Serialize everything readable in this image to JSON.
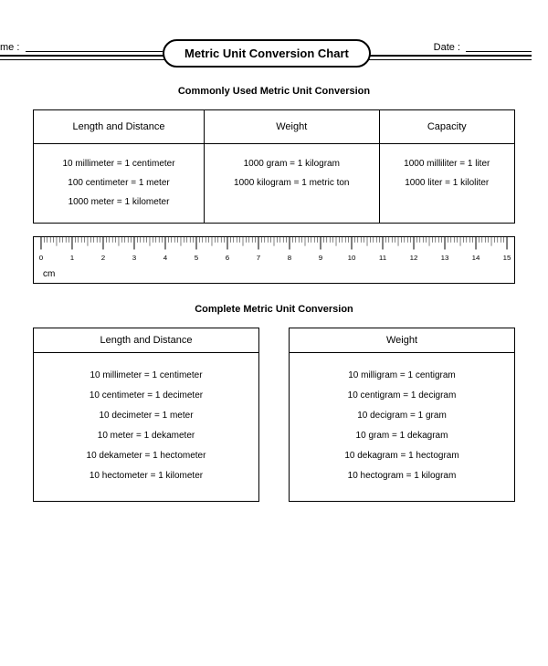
{
  "header": {
    "name_label": "me :",
    "date_label": "Date :",
    "title": "Metric Unit Conversion Chart"
  },
  "section1": {
    "title": "Commonly Used Metric Unit Conversion",
    "columns": [
      "Length and Distance",
      "Weight",
      "Capacity"
    ],
    "rows": [
      [
        "10 millimeter = 1 centimeter",
        "1000 gram = 1 kilogram",
        "1000 milliliter = 1 liter"
      ],
      [
        "100 centimeter = 1 meter",
        "1000 kilogram = 1 metric ton",
        "1000 liter = 1 kiloliter"
      ],
      [
        "1000 meter = 1 kilometer",
        "",
        ""
      ]
    ]
  },
  "ruler": {
    "unit_label": "cm",
    "ticks": [
      0,
      1,
      2,
      3,
      4,
      5,
      6,
      7,
      8,
      9,
      10,
      11,
      12,
      13,
      14,
      15
    ],
    "minor_per_major": 10,
    "tick_color": "#000000",
    "font_size": 8
  },
  "section2": {
    "title": "Complete Metric Unit Conversion",
    "left": {
      "header": "Length and Distance",
      "lines": [
        "10 millimeter = 1 centimeter",
        "10 centimeter = 1 decimeter",
        "10 decimeter = 1 meter",
        "10 meter  = 1 dekameter",
        "10 dekameter = 1 hectometer",
        "10 hectometer = 1 kilometer"
      ]
    },
    "right": {
      "header": "Weight",
      "lines": [
        "10 milligram = 1 centigram",
        "10 centigram = 1 decigram",
        "10 decigram = 1 gram",
        "10 gram  = 1 dekagram",
        "10 dekagram = 1 hectogram",
        "10 hectogram = 1 kilogram"
      ]
    }
  },
  "colors": {
    "background": "#ffffff",
    "text": "#000000",
    "border": "#000000"
  }
}
